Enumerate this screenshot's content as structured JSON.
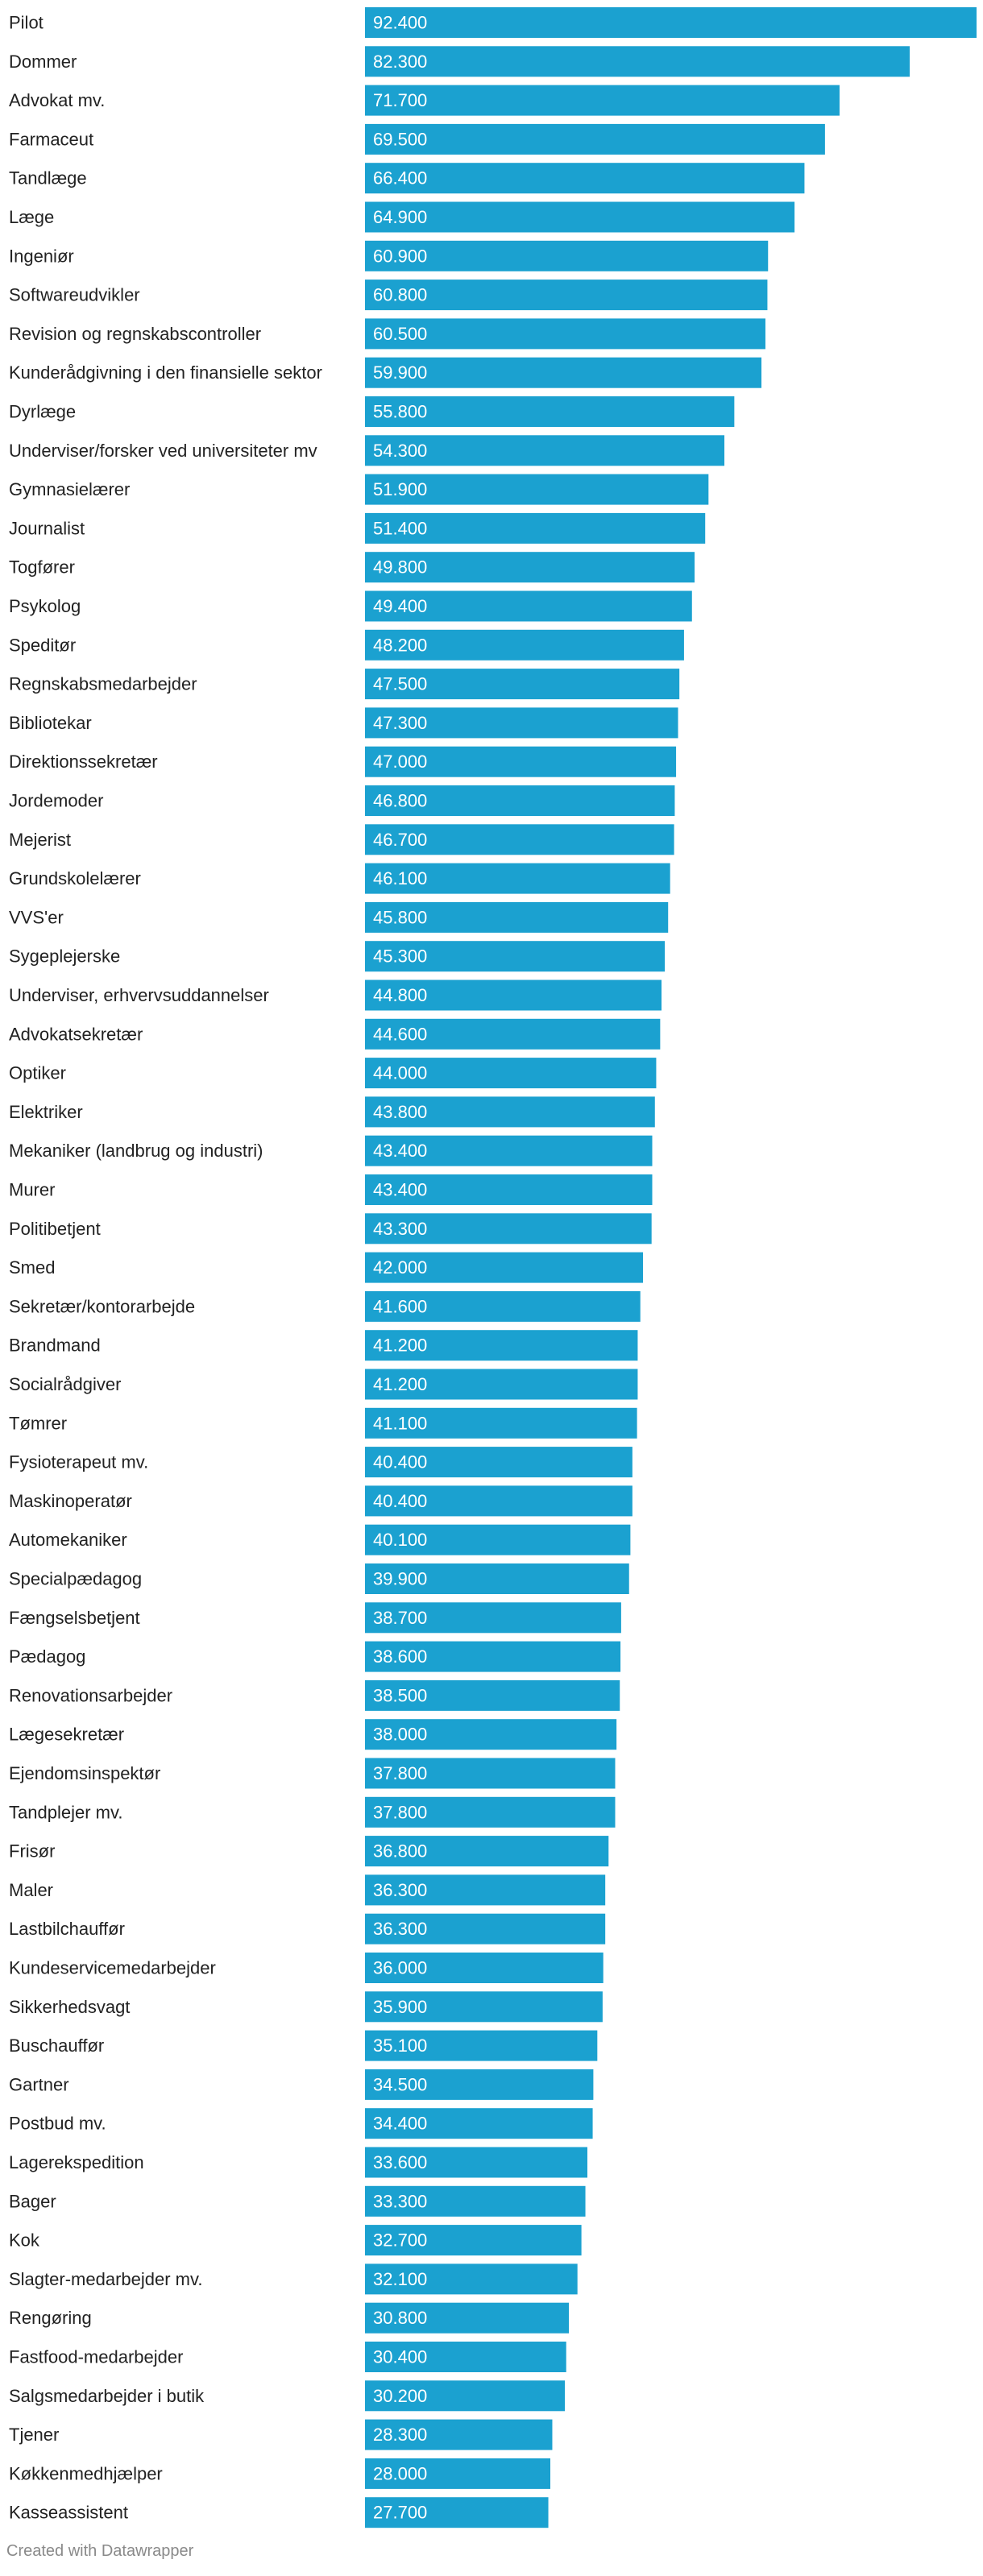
{
  "chart_data": {
    "type": "bar",
    "orientation": "horizontal",
    "title": "",
    "xlabel": "",
    "ylabel": "",
    "xlim": [
      0,
      92400
    ],
    "grid": false,
    "bar_color": "#1ba1d0",
    "label_color": "#ffffff",
    "categories": [
      "Pilot",
      "Dommer",
      "Advokat mv.",
      "Farmaceut",
      "Tandlæge",
      "Læge",
      "Ingeniør",
      "Softwareudvikler",
      "Revision og regnskabscontroller",
      "Kunderådgivning i den finansielle sektor",
      "Dyrlæge",
      "Underviser/forsker ved universiteter mv",
      "Gymnasielærer",
      "Journalist",
      "Togfører",
      "Psykolog",
      "Speditør",
      "Regnskabsmedarbejder",
      "Bibliotekar",
      "Direktionssekretær",
      "Jordemoder",
      "Mejerist",
      "Grundskolelærer",
      "VVS'er",
      "Sygeplejerske",
      "Underviser, erhvervsuddannelser",
      "Advokatsekretær",
      "Optiker",
      "Elektriker",
      "Mekaniker (landbrug og industri)",
      "Murer",
      "Politibetjent",
      "Smed",
      "Sekretær/kontorarbejde",
      "Brandmand",
      "Socialrådgiver",
      "Tømrer",
      "Fysioterapeut mv.",
      "Maskinoperatør",
      "Automekaniker",
      "Specialpædagog",
      "Fængselsbetjent",
      "Pædagog",
      "Renovationsarbejder",
      "Lægesekretær",
      "Ejendomsinspektør",
      "Tandplejer mv.",
      "Frisør",
      "Maler",
      "Lastbilchauffør",
      "Kundeservicemedarbejder",
      "Sikkerhedsvagt",
      "Buschauffør",
      "Gartner",
      "Postbud mv.",
      "Lagerekspedition",
      "Bager",
      "Kok",
      "Slagter-medarbejder mv.",
      "Rengøring",
      "Fastfood-medarbejder",
      "Salgsmedarbejder i butik",
      "Tjener",
      "Køkkenmedhjælper",
      "Kasseassistent"
    ],
    "values": [
      92400,
      82300,
      71700,
      69500,
      66400,
      64900,
      60900,
      60800,
      60500,
      59900,
      55800,
      54300,
      51900,
      51400,
      49800,
      49400,
      48200,
      47500,
      47300,
      47000,
      46800,
      46700,
      46100,
      45800,
      45300,
      44800,
      44600,
      44000,
      43800,
      43400,
      43400,
      43300,
      42000,
      41600,
      41200,
      41200,
      41100,
      40400,
      40400,
      40100,
      39900,
      38700,
      38600,
      38500,
      38000,
      37800,
      37800,
      36800,
      36300,
      36300,
      36000,
      35900,
      35100,
      34500,
      34400,
      33600,
      33300,
      32700,
      32100,
      30800,
      30400,
      30200,
      28300,
      28000,
      27700
    ],
    "value_labels": [
      "92.400",
      "82.300",
      "71.700",
      "69.500",
      "66.400",
      "64.900",
      "60.900",
      "60.800",
      "60.500",
      "59.900",
      "55.800",
      "54.300",
      "51.900",
      "51.400",
      "49.800",
      "49.400",
      "48.200",
      "47.500",
      "47.300",
      "47.000",
      "46.800",
      "46.700",
      "46.100",
      "45.800",
      "45.300",
      "44.800",
      "44.600",
      "44.000",
      "43.800",
      "43.400",
      "43.400",
      "43.300",
      "42.000",
      "41.600",
      "41.200",
      "41.200",
      "41.100",
      "40.400",
      "40.400",
      "40.100",
      "39.900",
      "38.700",
      "38.600",
      "38.500",
      "38.000",
      "37.800",
      "37.800",
      "36.800",
      "36.300",
      "36.300",
      "36.000",
      "35.900",
      "35.100",
      "34.500",
      "34.400",
      "33.600",
      "33.300",
      "32.700",
      "32.100",
      "30.800",
      "30.400",
      "30.200",
      "28.300",
      "28.000",
      "27.700"
    ]
  },
  "footer": {
    "credit": "Created with Datawrapper"
  }
}
